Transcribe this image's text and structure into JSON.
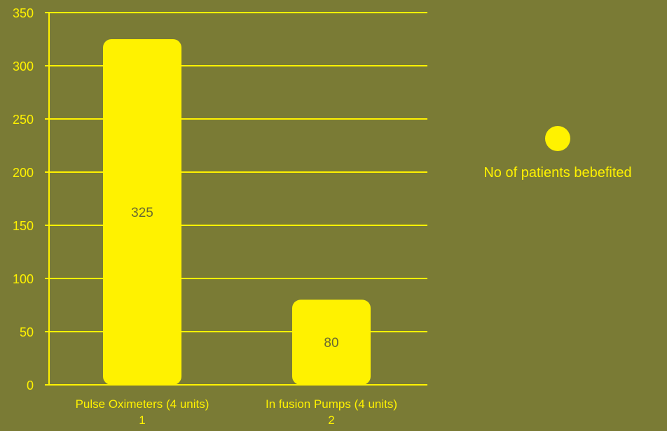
{
  "colors": {
    "background": "#7a7b35",
    "bar": "#fff200",
    "axis": "#fff200",
    "grid": "#fff200",
    "tick_text": "#fff200",
    "data_label_text": "#6a6a30"
  },
  "legend": {
    "label": "No of patients bebefited",
    "marker": "circle",
    "placement": "right"
  },
  "chart_data": {
    "type": "bar",
    "title": "",
    "xlabel": "",
    "ylabel": "",
    "categories": [
      "Pulse Oximeters (4 units)",
      "In fusion Pumps (4 units)"
    ],
    "category_index_labels": [
      "1",
      "2"
    ],
    "series": [
      {
        "name": "No of patients bebefited",
        "values": [
          325,
          80
        ]
      }
    ],
    "data_labels": [
      "325",
      "80"
    ],
    "ylim": [
      0,
      350
    ],
    "yticks": [
      0,
      50,
      100,
      150,
      200,
      250,
      300,
      350
    ],
    "grid": true,
    "legend_placement": "right"
  }
}
